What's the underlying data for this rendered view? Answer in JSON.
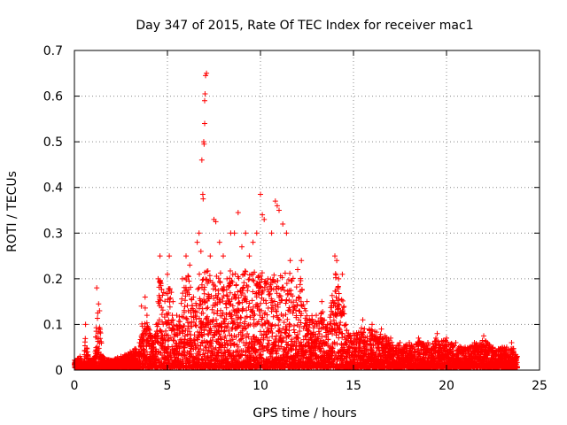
{
  "chart_data": {
    "type": "scatter",
    "title": "Day 347 of 2015, Rate Of TEC Index for receiver mac1",
    "xlabel": "GPS time / hours",
    "ylabel": "ROTI / TECUs",
    "xlim": [
      0,
      25
    ],
    "ylim": [
      0,
      0.7
    ],
    "xticks": [
      0,
      5,
      10,
      15,
      20,
      25
    ],
    "yticks": [
      0,
      0.1,
      0.2,
      0.3,
      0.4,
      0.5,
      0.6,
      0.7
    ],
    "xtick_labels": [
      "0",
      "5",
      "10",
      "15",
      "20",
      "25"
    ],
    "ytick_labels": [
      "0",
      "0.1",
      "0.2",
      "0.3",
      "0.4",
      "0.5",
      "0.6",
      "0.7"
    ],
    "grid": true,
    "marker": "+",
    "series_color": "#ff0000",
    "series": [
      {
        "name": "ROTI",
        "points": [
          [
            0.1,
            0.02
          ],
          [
            0.3,
            0.03
          ],
          [
            0.5,
            0.01
          ],
          [
            0.7,
            0.04
          ],
          [
            0.9,
            0.02
          ],
          [
            1.1,
            0.03
          ],
          [
            1.2,
            0.18
          ],
          [
            1.3,
            0.145
          ],
          [
            1.35,
            0.13
          ],
          [
            1.3,
            0.09
          ],
          [
            0.6,
            0.1
          ],
          [
            1.5,
            0.03
          ],
          [
            2.0,
            0.02
          ],
          [
            2.5,
            0.03
          ],
          [
            3.0,
            0.04
          ],
          [
            3.5,
            0.06
          ],
          [
            3.7,
            0.08
          ],
          [
            3.6,
            0.14
          ],
          [
            3.8,
            0.16
          ],
          [
            3.9,
            0.12
          ],
          [
            4.2,
            0.07
          ],
          [
            4.4,
            0.1
          ],
          [
            4.5,
            0.2
          ],
          [
            4.6,
            0.25
          ],
          [
            4.8,
            0.17
          ],
          [
            5.0,
            0.21
          ],
          [
            5.1,
            0.25
          ],
          [
            5.3,
            0.15
          ],
          [
            5.5,
            0.12
          ],
          [
            5.8,
            0.2
          ],
          [
            6.0,
            0.25
          ],
          [
            6.2,
            0.23
          ],
          [
            6.4,
            0.16
          ],
          [
            6.6,
            0.28
          ],
          [
            6.7,
            0.3
          ],
          [
            6.8,
            0.26
          ],
          [
            6.85,
            0.46
          ],
          [
            6.9,
            0.385
          ],
          [
            6.92,
            0.375
          ],
          [
            6.95,
            0.5
          ],
          [
            6.97,
            0.495
          ],
          [
            7.0,
            0.54
          ],
          [
            7.0,
            0.59
          ],
          [
            7.02,
            0.605
          ],
          [
            7.05,
            0.645
          ],
          [
            7.1,
            0.65
          ],
          [
            7.3,
            0.25
          ],
          [
            7.5,
            0.33
          ],
          [
            7.6,
            0.325
          ],
          [
            7.8,
            0.28
          ],
          [
            8.0,
            0.25
          ],
          [
            8.2,
            0.2
          ],
          [
            8.4,
            0.3
          ],
          [
            8.6,
            0.3
          ],
          [
            8.8,
            0.345
          ],
          [
            9.0,
            0.27
          ],
          [
            9.2,
            0.3
          ],
          [
            9.4,
            0.25
          ],
          [
            9.6,
            0.28
          ],
          [
            9.8,
            0.3
          ],
          [
            10.0,
            0.385
          ],
          [
            10.1,
            0.34
          ],
          [
            10.2,
            0.33
          ],
          [
            10.4,
            0.2
          ],
          [
            10.6,
            0.3
          ],
          [
            10.8,
            0.37
          ],
          [
            10.9,
            0.36
          ],
          [
            11.0,
            0.35
          ],
          [
            11.2,
            0.32
          ],
          [
            11.4,
            0.3
          ],
          [
            11.6,
            0.24
          ],
          [
            12.0,
            0.22
          ],
          [
            12.2,
            0.24
          ],
          [
            12.5,
            0.15
          ],
          [
            13.0,
            0.12
          ],
          [
            13.3,
            0.15
          ],
          [
            13.6,
            0.1
          ],
          [
            14.0,
            0.25
          ],
          [
            14.1,
            0.24
          ],
          [
            14.2,
            0.2
          ],
          [
            14.4,
            0.21
          ],
          [
            14.6,
            0.1
          ],
          [
            15.0,
            0.08
          ],
          [
            15.5,
            0.11
          ],
          [
            16.0,
            0.1
          ],
          [
            16.5,
            0.09
          ],
          [
            17.0,
            0.07
          ],
          [
            17.5,
            0.06
          ],
          [
            18.0,
            0.06
          ],
          [
            18.5,
            0.07
          ],
          [
            19.0,
            0.06
          ],
          [
            19.5,
            0.08
          ],
          [
            20.0,
            0.07
          ],
          [
            20.5,
            0.06
          ],
          [
            21.0,
            0.05
          ],
          [
            21.5,
            0.06
          ],
          [
            22.0,
            0.075
          ],
          [
            22.5,
            0.05
          ],
          [
            23.0,
            0.05
          ],
          [
            23.5,
            0.06
          ],
          [
            23.8,
            0.03
          ]
        ]
      }
    ]
  }
}
